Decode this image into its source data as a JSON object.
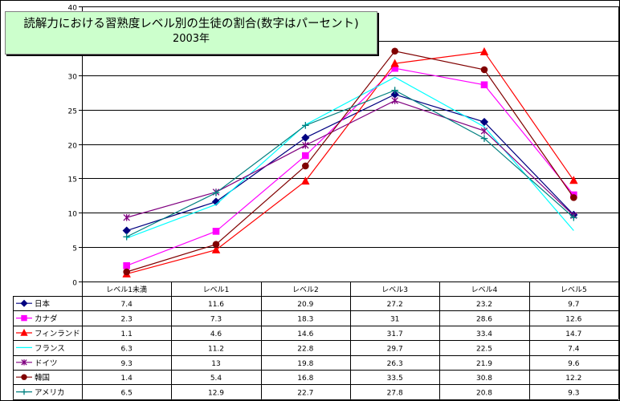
{
  "title": {
    "line1": "読解力における習熟度レベル別の生徒の割合(数字はパーセント)",
    "line2": "2003年"
  },
  "chart_data": {
    "type": "line",
    "title": "読解力における習熟度レベル別の生徒の割合(数字はパーセント) 2003年",
    "categories": [
      "レベル1未満",
      "レベル1",
      "レベル2",
      "レベル3",
      "レベル4",
      "レベル5"
    ],
    "ylim": [
      0,
      40
    ],
    "yticks": [
      0,
      5,
      10,
      15,
      20,
      25,
      30,
      35,
      40
    ],
    "ytick_labels": [
      "0",
      "5",
      "10",
      "15",
      "20",
      "25",
      "30",
      "",
      "40"
    ],
    "grid": true,
    "legend_placement": "data-table",
    "series": [
      {
        "name": "日本",
        "color": "#000080",
        "marker": "diamond",
        "values": [
          7.4,
          11.6,
          20.9,
          27.2,
          23.2,
          9.7
        ],
        "labels": [
          "7.4",
          "11.6",
          "20.9",
          "27.2",
          "23.2",
          "9.7"
        ]
      },
      {
        "name": "カナダ",
        "color": "#ff00ff",
        "marker": "square",
        "values": [
          2.3,
          7.3,
          18.3,
          31,
          28.6,
          12.6
        ],
        "labels": [
          "2.3",
          "7.3",
          "18.3",
          "31",
          "28.6",
          "12.6"
        ]
      },
      {
        "name": "フィンランド",
        "color": "#ff0000",
        "marker": "triangle",
        "values": [
          1.1,
          4.6,
          14.6,
          31.7,
          33.4,
          14.7
        ],
        "labels": [
          "1.1",
          "4.6",
          "14.6",
          "31.7",
          "33.4",
          "14.7"
        ]
      },
      {
        "name": "フランス",
        "color": "#00ffff",
        "marker": "none",
        "values": [
          6.3,
          11.2,
          22.8,
          29.7,
          22.5,
          7.4
        ],
        "labels": [
          "6.3",
          "11.2",
          "22.8",
          "29.7",
          "22.5",
          "7.4"
        ]
      },
      {
        "name": "ドイツ",
        "color": "#800080",
        "marker": "star",
        "values": [
          9.3,
          13,
          19.8,
          26.3,
          21.9,
          9.6
        ],
        "labels": [
          "9.3",
          "13",
          "19.8",
          "26.3",
          "21.9",
          "9.6"
        ]
      },
      {
        "name": "韓国",
        "color": "#800000",
        "marker": "circle",
        "values": [
          1.4,
          5.4,
          16.8,
          33.5,
          30.8,
          12.2
        ],
        "labels": [
          "1.4",
          "5.4",
          "16.8",
          "33.5",
          "30.8",
          "12.2"
        ]
      },
      {
        "name": "アメリカ",
        "color": "#008080",
        "marker": "plus",
        "values": [
          6.5,
          12.9,
          22.7,
          27.8,
          20.8,
          9.3
        ],
        "labels": [
          "6.5",
          "12.9",
          "22.7",
          "27.8",
          "20.8",
          "9.3"
        ]
      }
    ]
  }
}
